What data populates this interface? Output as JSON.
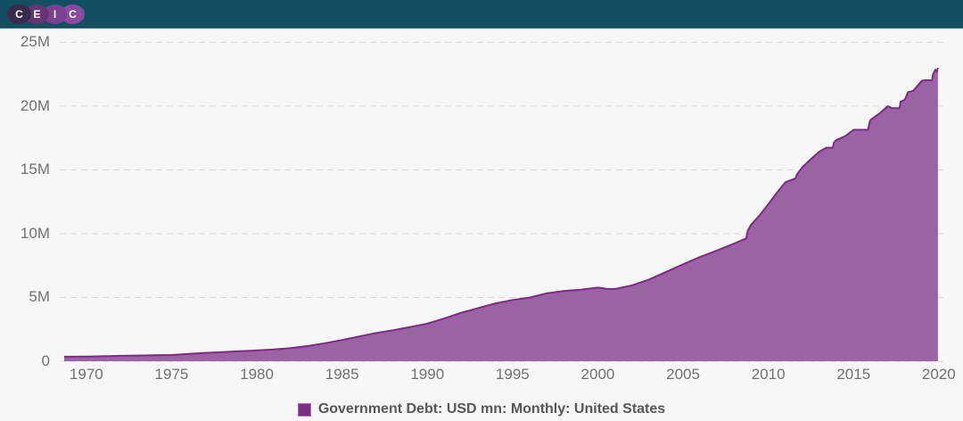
{
  "header": {
    "brand": "CEIC",
    "logo_letters": [
      "C",
      "E",
      "I",
      "C"
    ],
    "bar_color": "#124f63"
  },
  "chart_data": {
    "type": "area",
    "title": "",
    "xlabel": "",
    "ylabel": "",
    "grid": "horizontal-dashed",
    "legend_position": "bottom-center",
    "x_domain": [
      1968.7,
      2019.95
    ],
    "y_domain": [
      0,
      25
    ],
    "y_tick_values": [
      0,
      5,
      10,
      15,
      20,
      25
    ],
    "y_tick_labels": [
      "0",
      "5M",
      "10M",
      "15M",
      "20M",
      "25M"
    ],
    "x_tick_values": [
      1970,
      1975,
      1980,
      1985,
      1990,
      1995,
      2000,
      2005,
      2010,
      2015,
      2020
    ],
    "x_tick_labels": [
      "1970",
      "1975",
      "1980",
      "1985",
      "1990",
      "1995",
      "2000",
      "2005",
      "2010",
      "2015",
      "2020"
    ],
    "colors": {
      "area_fill": "#9c62a5",
      "area_stroke": "#7b2d81",
      "gridline": "#d9d9d9",
      "tick_text": "#6e7276",
      "legend_swatch": "#7d2c83"
    },
    "series": [
      {
        "name": "Government Debt: USD mn: Monthly: United States",
        "unit_note": "values in millions of USD mn (M)",
        "points": [
          [
            1968.7,
            0.355
          ],
          [
            1969,
            0.358
          ],
          [
            1970,
            0.368
          ],
          [
            1971,
            0.389
          ],
          [
            1972,
            0.424
          ],
          [
            1973,
            0.449
          ],
          [
            1974,
            0.469
          ],
          [
            1975,
            0.492
          ],
          [
            1976,
            0.577
          ],
          [
            1977,
            0.654
          ],
          [
            1978,
            0.719
          ],
          [
            1979,
            0.789
          ],
          [
            1980,
            0.845
          ],
          [
            1981,
            0.93
          ],
          [
            1982,
            1.029
          ],
          [
            1983,
            1.197
          ],
          [
            1984,
            1.411
          ],
          [
            1985,
            1.663
          ],
          [
            1986,
            1.946
          ],
          [
            1987,
            2.214
          ],
          [
            1988,
            2.431
          ],
          [
            1989,
            2.684
          ],
          [
            1990,
            2.953
          ],
          [
            1991,
            3.365
          ],
          [
            1992,
            3.802
          ],
          [
            1993,
            4.177
          ],
          [
            1994,
            4.536
          ],
          [
            1995,
            4.8
          ],
          [
            1996,
            4.989
          ],
          [
            1997,
            5.323
          ],
          [
            1998,
            5.502
          ],
          [
            1999,
            5.614
          ],
          [
            2000,
            5.776
          ],
          [
            2000.5,
            5.686
          ],
          [
            2001,
            5.662
          ],
          [
            2002,
            5.943
          ],
          [
            2003,
            6.406
          ],
          [
            2004,
            6.998
          ],
          [
            2005,
            7.596
          ],
          [
            2006,
            8.17
          ],
          [
            2007,
            8.68
          ],
          [
            2008,
            9.229
          ],
          [
            2008.7,
            9.63
          ],
          [
            2008.8,
            10.25
          ],
          [
            2009,
            10.7
          ],
          [
            2009.5,
            11.45
          ],
          [
            2010,
            12.31
          ],
          [
            2010.5,
            13.2
          ],
          [
            2011,
            14.03
          ],
          [
            2011.6,
            14.34
          ],
          [
            2011.68,
            14.64
          ],
          [
            2012,
            15.22
          ],
          [
            2012.5,
            15.85
          ],
          [
            2013,
            16.43
          ],
          [
            2013.4,
            16.74
          ],
          [
            2013.78,
            16.74
          ],
          [
            2013.86,
            17.16
          ],
          [
            2014,
            17.35
          ],
          [
            2014.5,
            17.63
          ],
          [
            2015,
            18.14
          ],
          [
            2015.85,
            18.15
          ],
          [
            2015.95,
            18.78
          ],
          [
            2016,
            18.92
          ],
          [
            2016.5,
            19.4
          ],
          [
            2017,
            19.98
          ],
          [
            2017.25,
            19.85
          ],
          [
            2017.7,
            19.84
          ],
          [
            2017.76,
            20.35
          ],
          [
            2018,
            20.49
          ],
          [
            2018.2,
            21.09
          ],
          [
            2018.5,
            21.2
          ],
          [
            2019,
            21.97
          ],
          [
            2019.2,
            22.03
          ],
          [
            2019.6,
            22.02
          ],
          [
            2019.66,
            22.5
          ],
          [
            2019.8,
            22.85
          ],
          [
            2019.88,
            22.7
          ],
          [
            2019.95,
            23.0
          ]
        ]
      }
    ]
  },
  "legend": {
    "label": "Government Debt: USD mn: Monthly: United States"
  }
}
